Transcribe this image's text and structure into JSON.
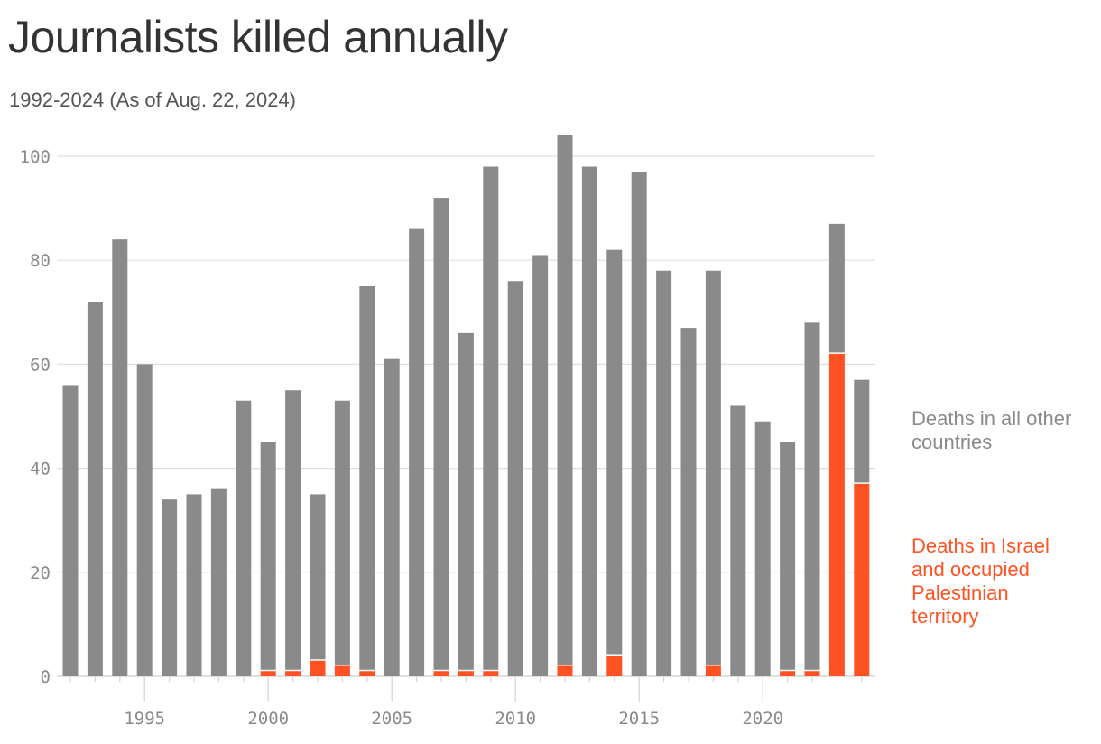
{
  "chart_data": {
    "type": "bar",
    "stacked": true,
    "title": "Journalists killed annually",
    "subtitle": "1992-2024 (As of Aug. 22, 2024)",
    "x": [
      1992,
      1993,
      1994,
      1995,
      1996,
      1997,
      1998,
      1999,
      2000,
      2001,
      2002,
      2003,
      2004,
      2005,
      2006,
      2007,
      2008,
      2009,
      2010,
      2011,
      2012,
      2013,
      2014,
      2015,
      2016,
      2017,
      2018,
      2019,
      2020,
      2021,
      2022,
      2023,
      2024
    ],
    "series": [
      {
        "name": "Deaths in Israel and occupied Palestinian territory",
        "color": "#ff5222",
        "values": [
          0,
          0,
          0,
          0,
          0,
          0,
          0,
          0,
          1,
          1,
          3,
          2,
          1,
          0,
          0,
          1,
          1,
          1,
          0,
          0,
          2,
          0,
          4,
          0,
          0,
          0,
          2,
          0,
          0,
          1,
          1,
          62,
          37
        ]
      },
      {
        "name": "Deaths in all other countries",
        "color": "#8a8a8a",
        "values": [
          56,
          72,
          84,
          60,
          34,
          35,
          36,
          53,
          44,
          54,
          32,
          51,
          74,
          61,
          86,
          91,
          65,
          97,
          76,
          81,
          102,
          98,
          78,
          97,
          78,
          67,
          76,
          52,
          49,
          44,
          67,
          25,
          20
        ]
      }
    ],
    "ylim": [
      0,
      104
    ],
    "yticks": [
      0,
      20,
      40,
      60,
      80,
      100
    ],
    "xticks": [
      1995,
      2000,
      2005,
      2010,
      2015,
      2020
    ],
    "grid": true,
    "legend_placement": "right",
    "legend": {
      "others": "Deaths in all other countries",
      "israel": "Deaths in Israel and occupied Palestinian territory"
    }
  }
}
